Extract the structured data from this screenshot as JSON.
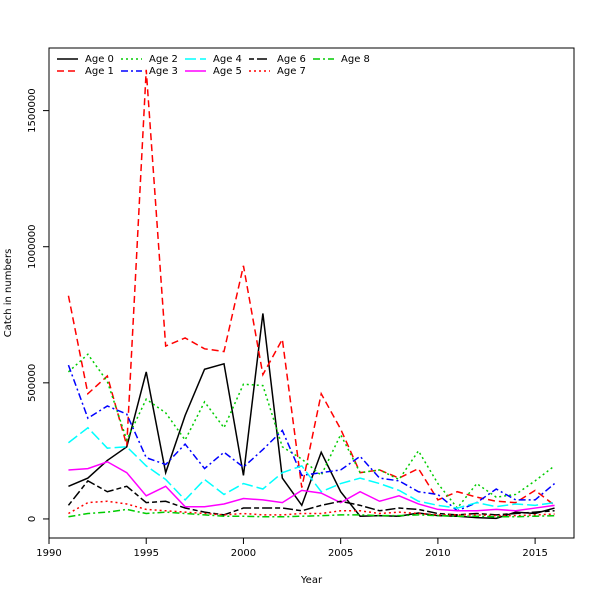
{
  "chart_data": {
    "type": "line",
    "title": "",
    "xlabel": "Year",
    "ylabel": "Catch in numbers",
    "xlim": [
      1990,
      2017
    ],
    "ylim": [
      -70000,
      1730000
    ],
    "xticks": [
      1990,
      1995,
      2000,
      2005,
      2010,
      2015
    ],
    "yticks": [
      0,
      500000,
      1000000,
      1500000
    ],
    "legend_position": "top-left",
    "x": [
      1991,
      1992,
      1993,
      1994,
      1995,
      1996,
      1997,
      1998,
      1999,
      2000,
      2001,
      2002,
      2003,
      2004,
      2005,
      2006,
      2007,
      2008,
      2009,
      2010,
      2011,
      2012,
      2013,
      2014,
      2015,
      2016
    ],
    "series": [
      {
        "name": "Age 0",
        "color": "#000000",
        "dash": "solid",
        "values": [
          120000,
          150000,
          215000,
          265000,
          540000,
          170000,
          380000,
          550000,
          570000,
          160000,
          755000,
          150000,
          50000,
          245000,
          100000,
          10000,
          12000,
          10000,
          22000,
          12000,
          10000,
          5000,
          2000,
          25000,
          20000,
          40000
        ]
      },
      {
        "name": "Age 1",
        "color": "#ff0000",
        "dash": "dashed",
        "values": [
          820000,
          460000,
          525000,
          270000,
          1650000,
          635000,
          665000,
          625000,
          615000,
          930000,
          530000,
          660000,
          115000,
          460000,
          330000,
          170000,
          180000,
          150000,
          185000,
          70000,
          100000,
          80000,
          65000,
          60000,
          105000,
          50000
        ]
      },
      {
        "name": "Age 2",
        "color": "#00cc00",
        "dash": "dotted",
        "values": [
          540000,
          605000,
          505000,
          290000,
          440000,
          390000,
          290000,
          430000,
          335000,
          495000,
          490000,
          265000,
          220000,
          160000,
          310000,
          170000,
          180000,
          145000,
          250000,
          130000,
          40000,
          130000,
          80000,
          90000,
          140000,
          195000
        ]
      },
      {
        "name": "Age 3",
        "color": "#0000ff",
        "dash": "dashdot",
        "values": [
          565000,
          370000,
          415000,
          385000,
          225000,
          200000,
          275000,
          185000,
          245000,
          190000,
          255000,
          325000,
          160000,
          170000,
          180000,
          230000,
          150000,
          140000,
          100000,
          90000,
          30000,
          60000,
          110000,
          70000,
          70000,
          130000
        ]
      },
      {
        "name": "Age 4",
        "color": "#00ffff",
        "dash": "longdash",
        "values": [
          280000,
          335000,
          260000,
          265000,
          195000,
          145000,
          70000,
          145000,
          90000,
          130000,
          110000,
          170000,
          195000,
          100000,
          130000,
          150000,
          130000,
          105000,
          65000,
          50000,
          40000,
          60000,
          45000,
          55000,
          50000,
          60000
        ]
      },
      {
        "name": "Age 5",
        "color": "#ff00ff",
        "dash": "solid",
        "values": [
          180000,
          185000,
          210000,
          170000,
          85000,
          120000,
          45000,
          45000,
          55000,
          75000,
          70000,
          60000,
          105000,
          95000,
          60000,
          100000,
          65000,
          85000,
          55000,
          35000,
          30000,
          30000,
          35000,
          30000,
          40000,
          50000
        ]
      },
      {
        "name": "Age 6",
        "color": "#000000",
        "dash": "twodash",
        "values": [
          50000,
          140000,
          100000,
          120000,
          60000,
          65000,
          40000,
          25000,
          15000,
          40000,
          40000,
          40000,
          30000,
          50000,
          65000,
          50000,
          30000,
          40000,
          35000,
          20000,
          15000,
          20000,
          15000,
          20000,
          25000,
          30000
        ]
      },
      {
        "name": "Age 7",
        "color": "#ff0000",
        "dash": "dotted",
        "values": [
          20000,
          60000,
          65000,
          55000,
          35000,
          30000,
          25000,
          20000,
          15000,
          20000,
          15000,
          15000,
          20000,
          20000,
          30000,
          30000,
          20000,
          25000,
          20000,
          15000,
          15000,
          15000,
          12000,
          12000,
          15000,
          18000
        ]
      },
      {
        "name": "Age 8",
        "color": "#00cc00",
        "dash": "dashdot",
        "values": [
          8000,
          20000,
          25000,
          35000,
          20000,
          25000,
          20000,
          15000,
          10000,
          10000,
          8000,
          8000,
          10000,
          12000,
          15000,
          15000,
          12000,
          12000,
          15000,
          12000,
          10000,
          10000,
          8000,
          8000,
          10000,
          12000
        ]
      }
    ]
  }
}
